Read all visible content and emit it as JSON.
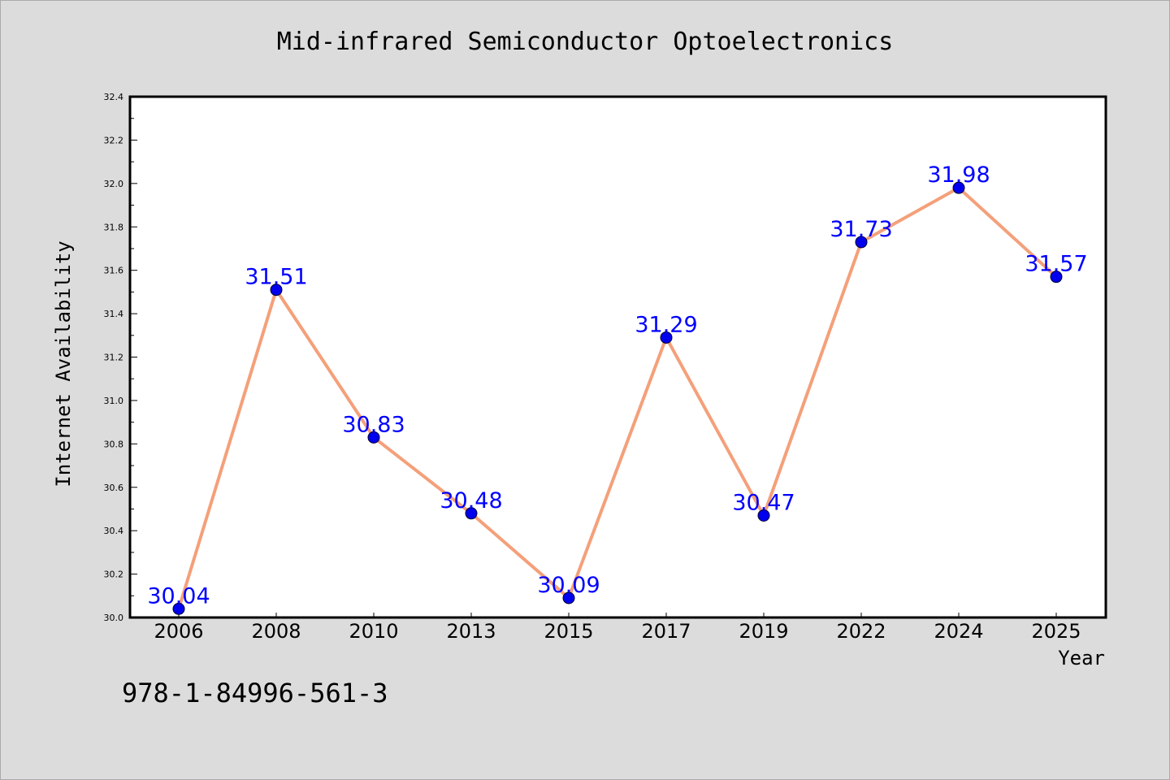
{
  "colors": {
    "background": "#dcdcdc",
    "plot_background": "#ffffff",
    "line": "#f4a07a",
    "marker": "#0000ee",
    "data_label": "#0000ff"
  },
  "footer": {
    "isbn": "978-1-84996-561-3"
  },
  "chart_data": {
    "type": "line",
    "title": "Mid-infrared Semiconductor Optoelectronics",
    "xlabel": "Year",
    "ylabel": "Internet Availability",
    "categories": [
      "2006",
      "2008",
      "2010",
      "2013",
      "2015",
      "2017",
      "2019",
      "2022",
      "2024",
      "2025"
    ],
    "series": [
      {
        "values": [
          30.04,
          31.51,
          30.83,
          30.48,
          30.09,
          31.29,
          30.47,
          31.73,
          31.98,
          31.57
        ]
      }
    ],
    "data_labels": [
      "30.04",
      "31.51",
      "30.83",
      "30.48",
      "30.09",
      "31.29",
      "30.47",
      "31.73",
      "31.98",
      "31.57"
    ],
    "ylim": [
      30.0,
      32.4
    ],
    "yticks": [
      "30.0",
      "30.2",
      "30.4",
      "30.6",
      "30.8",
      "31.0",
      "31.2",
      "31.4",
      "31.6",
      "31.8",
      "32.0",
      "32.2",
      "32.4"
    ],
    "grid": false,
    "legend": "none"
  }
}
